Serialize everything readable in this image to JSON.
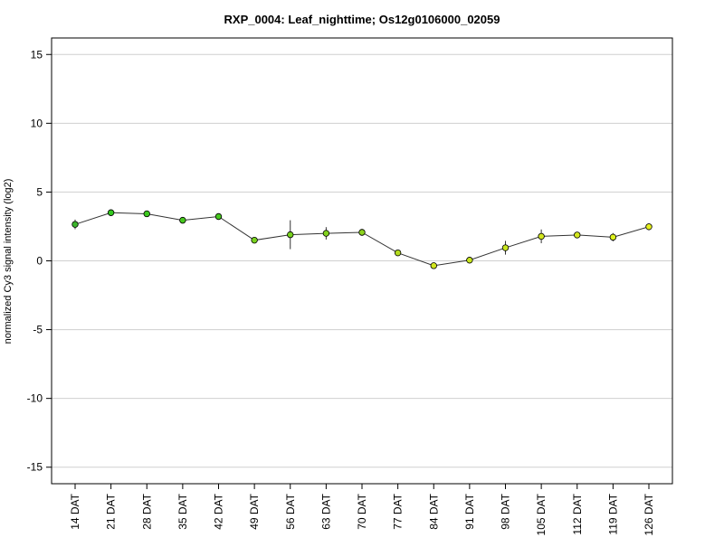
{
  "chart_data": {
    "type": "line",
    "title": "RXP_0004: Leaf_nighttime; Os12g0106000_02059",
    "xlabel": "",
    "ylabel": "normalized Cy3 signal intensity (log2)",
    "ylim": [
      -16.2,
      16.2
    ],
    "yticks": [
      -15,
      -10,
      -5,
      0,
      5,
      10,
      15
    ],
    "ytick_labels": [
      "-15",
      "-10",
      "-5",
      "0",
      "5",
      "10",
      "15"
    ],
    "grid": true,
    "categories": [
      "14 DAT",
      "21 DAT",
      "28 DAT",
      "35 DAT",
      "42 DAT",
      "49 DAT",
      "56 DAT",
      "63 DAT",
      "70 DAT",
      "77 DAT",
      "84 DAT",
      "91 DAT",
      "98 DAT",
      "105 DAT",
      "112 DAT",
      "119 DAT",
      "126 DAT"
    ],
    "series": [
      {
        "values": [
          2.65,
          3.5,
          3.42,
          2.95,
          3.22,
          1.5,
          1.9,
          2.0,
          2.07,
          0.58,
          -0.35,
          0.05,
          0.95,
          1.78,
          1.88,
          1.72,
          2.48
        ],
        "error": [
          0.35,
          0.12,
          0.12,
          0.2,
          0.15,
          0.1,
          1.05,
          0.45,
          0.25,
          0.12,
          0.1,
          0.12,
          0.5,
          0.5,
          0.2,
          0.3,
          0.25
        ],
        "colors": [
          "#3cb52c",
          "#32c81e",
          "#3cc81e",
          "#46c81e",
          "#46c81e",
          "#78d21e",
          "#78d21e",
          "#82d21e",
          "#8cd21e",
          "#b4dc1e",
          "#d2e61e",
          "#c8e61e",
          "#c8e61e",
          "#d2e61e",
          "#d2e61e",
          "#dcf01e",
          "#e6f01e"
        ]
      }
    ]
  }
}
